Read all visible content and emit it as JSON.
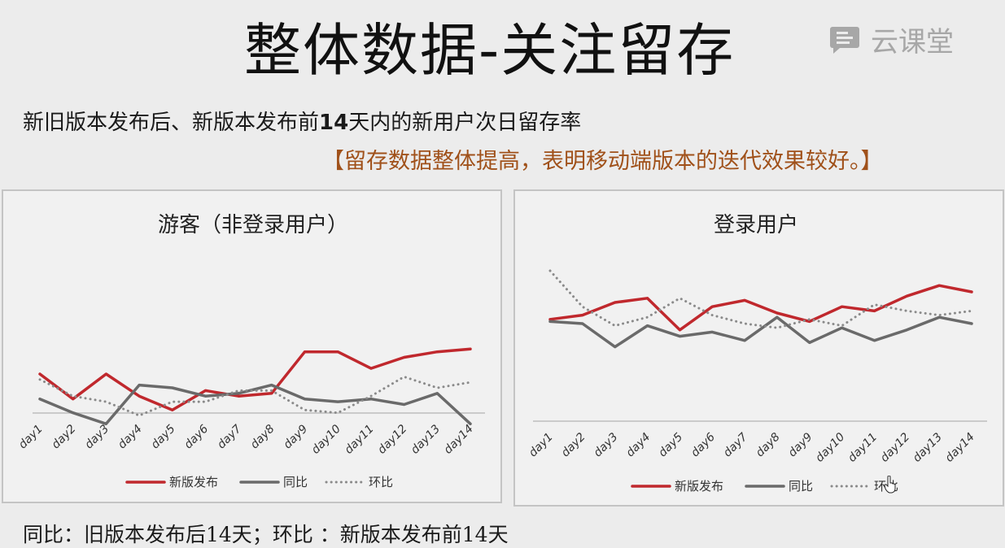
{
  "page": {
    "title": "整体数据-关注留存",
    "brand": "云课堂",
    "subtitle_pre": "新旧版本发布后、新版本发布前",
    "subtitle_num": "14",
    "subtitle_post": "天内的新用户次日留存率",
    "conclusion": "【留存数据整体提高，表明移动端版本的迭代效果较好。】",
    "footnote": "同比：旧版本发布后14天；环比 ：新版本发布前14天"
  },
  "colors": {
    "new_release": "#c0282d",
    "yoy": "#6a6a6a",
    "mom": "#8a8a8a",
    "conclusion": "#a0511a"
  },
  "chart_data": [
    {
      "type": "line",
      "title": "游客（非登录用户）",
      "categories": [
        "day1",
        "day2",
        "day3",
        "day4",
        "day5",
        "day6",
        "day7",
        "day8",
        "day9",
        "day10",
        "day11",
        "day12",
        "day13",
        "day14"
      ],
      "ylim": [
        0,
        100
      ],
      "grid": false,
      "legend_position": "bottom",
      "series": [
        {
          "name": "新版发布",
          "style": "solid",
          "color": "#c0282d",
          "values": [
            44,
            35,
            44,
            36,
            31,
            38,
            36,
            37,
            52,
            52,
            46,
            50,
            52,
            53
          ]
        },
        {
          "name": "同比",
          "style": "solid",
          "color": "#6a6a6a",
          "values": [
            35,
            30,
            26,
            40,
            39,
            36,
            37,
            40,
            35,
            34,
            35,
            33,
            37,
            26
          ]
        },
        {
          "name": "环比",
          "style": "dotted",
          "color": "#8a8a8a",
          "values": [
            42,
            36,
            34,
            29,
            34,
            34,
            38,
            38,
            31,
            30,
            36,
            43,
            39,
            41
          ]
        }
      ]
    },
    {
      "type": "line",
      "title": "登录用户",
      "categories": [
        "day1",
        "day2",
        "day3",
        "day4",
        "day5",
        "day6",
        "day7",
        "day8",
        "day9",
        "day10",
        "day11",
        "day12",
        "day13",
        "day14"
      ],
      "ylim": [
        0,
        100
      ],
      "grid": false,
      "legend_position": "bottom",
      "series": [
        {
          "name": "新版发布",
          "style": "solid",
          "color": "#c0282d",
          "values": [
            77,
            79,
            85,
            87,
            72,
            83,
            86,
            80,
            76,
            83,
            81,
            88,
            93,
            90
          ]
        },
        {
          "name": "同比",
          "style": "solid",
          "color": "#6a6a6a",
          "values": [
            76,
            75,
            64,
            74,
            69,
            71,
            67,
            78,
            66,
            73,
            67,
            72,
            78,
            75
          ]
        },
        {
          "name": "环比",
          "style": "dotted",
          "color": "#8a8a8a",
          "values": [
            100,
            83,
            74,
            78,
            87,
            79,
            75,
            73,
            77,
            74,
            84,
            81,
            79,
            81
          ]
        }
      ]
    }
  ]
}
